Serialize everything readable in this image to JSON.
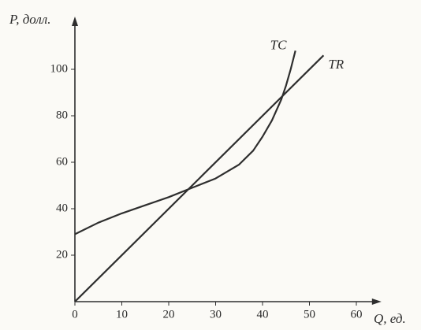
{
  "chart_data": {
    "type": "line",
    "x_label": "Q, ед.",
    "y_label": "P, долл.",
    "series": [
      {
        "name": "TC",
        "color": "#2e2e2e",
        "x": [
          0,
          5,
          10,
          15,
          20,
          25,
          30,
          35,
          38,
          40,
          42,
          44,
          45,
          46,
          47
        ],
        "values": [
          29,
          34,
          38,
          41.5,
          45,
          49,
          53,
          59,
          65,
          71,
          78,
          87,
          93,
          100,
          108
        ]
      },
      {
        "name": "TR",
        "color": "#2e2e2e",
        "x": [
          0,
          53
        ],
        "values": [
          0,
          106
        ]
      }
    ],
    "xlim": [
      0,
      64
    ],
    "ylim": [
      0,
      120
    ],
    "xticks": [
      0,
      10,
      20,
      30,
      40,
      50,
      60
    ],
    "yticks": [
      20,
      40,
      60,
      80,
      100
    ],
    "grid": false
  }
}
